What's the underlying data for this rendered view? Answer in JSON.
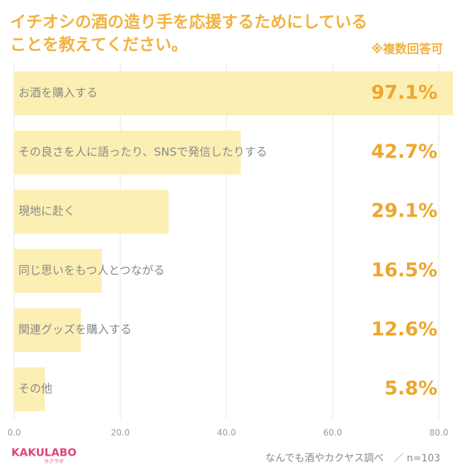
{
  "chart_data": {
    "type": "bar",
    "orientation": "horizontal",
    "title": [
      "イチオシの酒の造り手を応援するためにしている",
      "ことを教えてください。"
    ],
    "note": "※複数回答可",
    "categories": [
      "お酒を購入する",
      "その良さを人に語ったり、SNSで発信したりする",
      "現地に赴く",
      "同じ思いをもつ人とつながる",
      "関連グッズを購入する",
      "その他"
    ],
    "values": [
      97.1,
      42.7,
      29.1,
      16.5,
      12.6,
      5.8
    ],
    "value_labels": [
      "97.1%",
      "42.7%",
      "29.1%",
      "16.5%",
      "12.6%",
      "5.8%"
    ],
    "color": "#fcefb3",
    "xlim": [
      0,
      80
    ],
    "xticks": [
      {
        "value": 0,
        "label": "0.0"
      },
      {
        "value": 20,
        "label": "20.0"
      },
      {
        "value": 40,
        "label": "40.0"
      },
      {
        "value": 60,
        "label": "60.0"
      },
      {
        "value": 80,
        "label": "80.0"
      }
    ],
    "grid": true,
    "source": "なんでも酒やカクヤス調べ　／ n=103",
    "logo": "KAKULABO",
    "logo_sub": "カクラボ"
  }
}
